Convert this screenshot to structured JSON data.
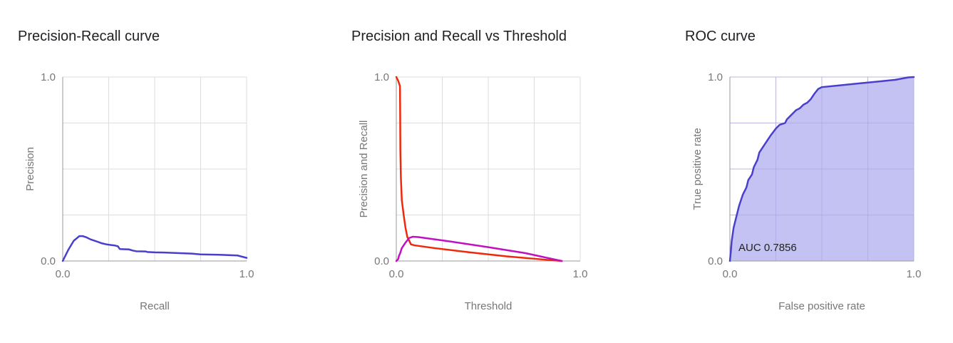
{
  "colors": {
    "pr_line": "#4a3fcc",
    "precision_line": "#f0280a",
    "recall_line": "#c010c0",
    "roc_line": "#4a3fcc",
    "roc_fill": "#c4c2f2",
    "grid": "#dddddd",
    "axis": "#999999"
  },
  "chart_data": [
    {
      "type": "line",
      "title": "Precision-Recall curve",
      "xlabel": "Recall",
      "ylabel": "Precision",
      "xlim": [
        0,
        1
      ],
      "ylim": [
        0,
        1
      ],
      "xticks": [
        "0.0",
        "1.0"
      ],
      "yticks": [
        "0.0",
        "1.0"
      ],
      "grid": true,
      "series": [
        {
          "x": [
            0.0,
            0.03,
            0.06,
            0.09,
            0.11,
            0.13,
            0.15,
            0.18,
            0.21,
            0.24,
            0.26,
            0.28,
            0.3,
            0.31,
            0.36,
            0.38,
            0.4,
            0.45,
            0.46,
            0.5,
            0.55,
            0.6,
            0.65,
            0.7,
            0.75,
            0.8,
            0.85,
            0.9,
            0.95,
            1.0
          ],
          "y": [
            0.0,
            0.06,
            0.11,
            0.135,
            0.135,
            0.128,
            0.118,
            0.108,
            0.097,
            0.09,
            0.087,
            0.085,
            0.08,
            0.065,
            0.063,
            0.057,
            0.053,
            0.052,
            0.049,
            0.047,
            0.046,
            0.044,
            0.042,
            0.04,
            0.036,
            0.035,
            0.034,
            0.032,
            0.03,
            0.017
          ]
        }
      ]
    },
    {
      "type": "line",
      "title": "Precision and Recall vs Threshold",
      "xlabel": "Threshold",
      "ylabel": "Precision and Recall",
      "xlim": [
        0,
        1
      ],
      "ylim": [
        0,
        1
      ],
      "xticks": [
        "0.0",
        "1.0"
      ],
      "yticks": [
        "0.0",
        "1.0"
      ],
      "grid": true,
      "series": [
        {
          "x": [
            0.0,
            0.01,
            0.02,
            0.021,
            0.022,
            0.025,
            0.03,
            0.04,
            0.05,
            0.06,
            0.08,
            0.1,
            0.2,
            0.4,
            0.6,
            0.8,
            0.9
          ],
          "y": [
            1.0,
            0.98,
            0.95,
            0.8,
            0.6,
            0.45,
            0.33,
            0.25,
            0.18,
            0.13,
            0.09,
            0.085,
            0.071,
            0.047,
            0.025,
            0.008,
            0.0
          ]
        },
        {
          "x": [
            0.0,
            0.01,
            0.015,
            0.02,
            0.03,
            0.05,
            0.07,
            0.09,
            0.12,
            0.3,
            0.5,
            0.7,
            0.9
          ],
          "y": [
            0.0,
            0.01,
            0.03,
            0.04,
            0.07,
            0.1,
            0.125,
            0.132,
            0.13,
            0.105,
            0.075,
            0.043,
            0.0
          ]
        }
      ]
    },
    {
      "type": "area",
      "title": "ROC curve",
      "xlabel": "False positive rate",
      "ylabel": "True positive rate",
      "xlim": [
        0,
        1
      ],
      "ylim": [
        0,
        1
      ],
      "xticks": [
        "0.0",
        "1.0"
      ],
      "yticks": [
        "0.0",
        "1.0"
      ],
      "grid": true,
      "annotation": "AUC 0.7856",
      "series": [
        {
          "x": [
            0.0,
            0.005,
            0.01,
            0.02,
            0.03,
            0.05,
            0.07,
            0.09,
            0.1,
            0.12,
            0.13,
            0.15,
            0.16,
            0.18,
            0.2,
            0.22,
            0.25,
            0.27,
            0.3,
            0.31,
            0.33,
            0.35,
            0.36,
            0.38,
            0.4,
            0.42,
            0.44,
            0.46,
            0.48,
            0.49,
            0.5,
            0.6,
            0.7,
            0.8,
            0.9,
            0.97,
            1.0
          ],
          "y": [
            0.0,
            0.05,
            0.11,
            0.18,
            0.22,
            0.3,
            0.36,
            0.4,
            0.44,
            0.47,
            0.51,
            0.55,
            0.59,
            0.62,
            0.65,
            0.68,
            0.72,
            0.74,
            0.75,
            0.77,
            0.79,
            0.81,
            0.82,
            0.83,
            0.85,
            0.86,
            0.88,
            0.91,
            0.935,
            0.94,
            0.945,
            0.955,
            0.965,
            0.975,
            0.985,
            0.998,
            1.0
          ]
        }
      ]
    }
  ]
}
